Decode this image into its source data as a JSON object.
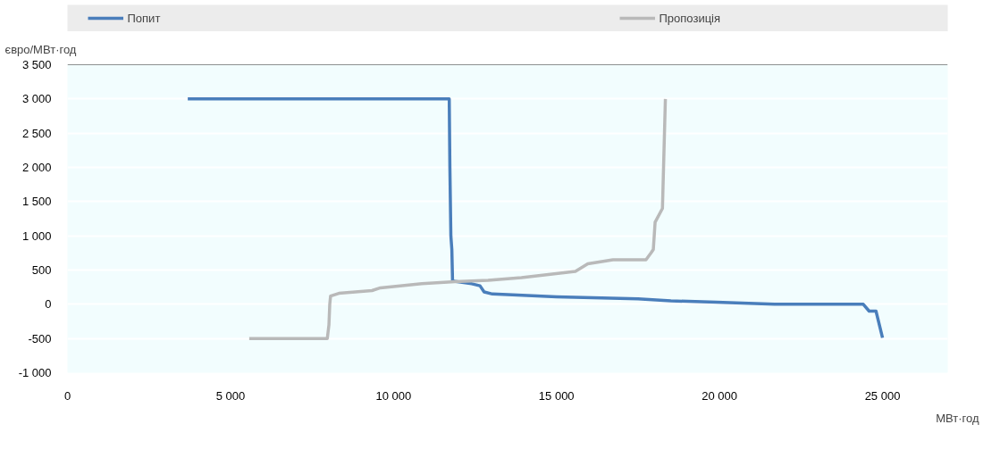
{
  "chart_data": {
    "type": "line",
    "xlabel": "МВт·год",
    "ylabel": "євро/МВт·год",
    "xlim": [
      0,
      27000
    ],
    "ylim": [
      -1000,
      3500
    ],
    "xticks": [
      0,
      {
        "value": 5000,
        "label": "5 000"
      },
      {
        "value": 10000,
        "label": "10 000"
      },
      {
        "value": 15000,
        "label": "15 000"
      },
      {
        "value": 20000,
        "label": "20 000"
      },
      {
        "value": 25000,
        "label": "25 000"
      }
    ],
    "yticks": [
      {
        "value": -1000,
        "label": "-1 000"
      },
      -500,
      0,
      500,
      {
        "value": 1000,
        "label": "1 000"
      },
      {
        "value": 1500,
        "label": "1 500"
      },
      {
        "value": 2000,
        "label": "2 000"
      },
      {
        "value": 2500,
        "label": "2 500"
      },
      {
        "value": 3000,
        "label": "3 000"
      },
      {
        "value": 3500,
        "label": "3 500"
      }
    ],
    "grid": "y",
    "legend": "top",
    "marker": "none",
    "line_style": "solid",
    "series": [
      {
        "name": "Попит",
        "color": "#4a7ebb",
        "x": [
          3690,
          11710,
          11730,
          11760,
          11790,
          11812,
          12398,
          12653,
          12780,
          13035,
          13500,
          15000,
          17500,
          18510,
          19910,
          21690,
          24410,
          24590,
          24800,
          25000
        ],
        "values": [
          3000,
          3000,
          2000,
          1000,
          800,
          340,
          300,
          270,
          180,
          150,
          140,
          110,
          80,
          50,
          30,
          0,
          0,
          -100,
          -100,
          -490
        ]
      },
      {
        "name": "Пропозиція",
        "color": "#b9b9b9",
        "x": [
          5575,
          7970,
          8020,
          8045,
          8070,
          8325,
          9340,
          9600,
          10870,
          11890,
          12900,
          13925,
          15580,
          15960,
          16730,
          17745,
          17900,
          17970,
          18025,
          18250,
          18340
        ],
        "values": [
          -500,
          -500,
          -300,
          0,
          120,
          160,
          200,
          240,
          300,
          330,
          350,
          390,
          480,
          590,
          650,
          650,
          750,
          800,
          1200,
          1400,
          3000
        ]
      }
    ]
  }
}
